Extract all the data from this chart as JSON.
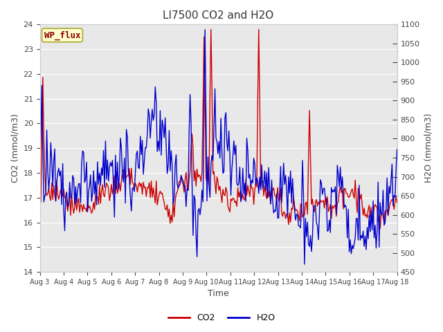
{
  "title": "LI7500 CO2 and H2O",
  "xlabel": "Time",
  "ylabel_left": "CO2 (mmol/m3)",
  "ylabel_right": "H2O (mmol/m3)",
  "ylim_left": [
    14.0,
    24.0
  ],
  "ylim_right": [
    450,
    1100
  ],
  "yticks_left": [
    14.0,
    15.0,
    16.0,
    17.0,
    18.0,
    19.0,
    20.0,
    21.0,
    22.0,
    23.0,
    24.0
  ],
  "yticks_right": [
    450,
    500,
    550,
    600,
    650,
    700,
    750,
    800,
    850,
    900,
    950,
    1000,
    1050,
    1100
  ],
  "xtick_labels": [
    "Aug 3",
    "Aug 4",
    "Aug 5",
    "Aug 6",
    "Aug 7",
    "Aug 8",
    "Aug 9",
    "Aug 10",
    "Aug 11",
    "Aug 12",
    "Aug 13",
    "Aug 14",
    "Aug 15",
    "Aug 16",
    "Aug 17",
    "Aug 18"
  ],
  "color_co2": "#cc0000",
  "color_h2o": "#0000cc",
  "bg_color": "#e8e8e8",
  "annotation_text": "WP_flux",
  "annotation_bg": "#ffffcc",
  "annotation_border": "#aaa830",
  "linewidth": 1.0,
  "title_fontsize": 11,
  "axis_fontsize": 9,
  "tick_fontsize": 8
}
